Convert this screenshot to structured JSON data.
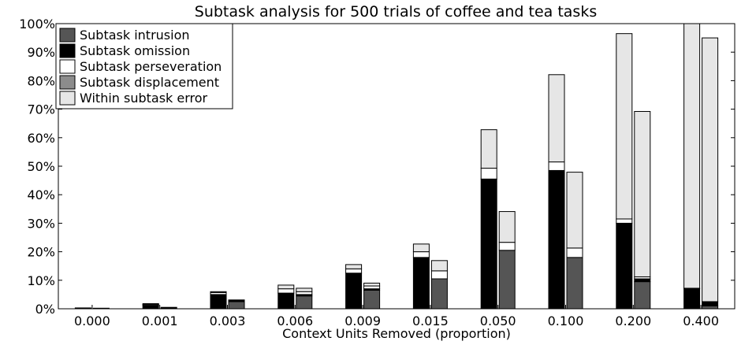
{
  "chart_data": {
    "type": "bar",
    "stacked": true,
    "title": "Subtask analysis for 500 trials of coffee and tea tasks",
    "xlabel": "Context Units Removed (proportion)",
    "ylabel": "",
    "ylim": [
      0,
      100
    ],
    "ytick_labels": [
      "0%",
      "10%",
      "20%",
      "30%",
      "40%",
      "50%",
      "60%",
      "70%",
      "80%",
      "90%",
      "100%"
    ],
    "categories": [
      "0.000",
      "0.001",
      "0.003",
      "0.006",
      "0.009",
      "0.015",
      "0.050",
      "0.100",
      "0.200",
      "0.400"
    ],
    "groups_per_category": 2,
    "legend_position": "top-left",
    "grid": false,
    "series": [
      {
        "name": "Subtask intrusion",
        "color": "#555555",
        "values": [
          [
            0,
            0
          ],
          [
            0,
            0
          ],
          [
            0,
            2.5
          ],
          [
            0,
            4.5
          ],
          [
            0,
            6.5
          ],
          [
            0,
            10.5
          ],
          [
            0,
            20.5
          ],
          [
            0,
            18
          ],
          [
            0,
            9.5
          ],
          [
            0,
            1
          ]
        ]
      },
      {
        "name": "Subtask omission",
        "color": "#000000",
        "values": [
          [
            0.3,
            0.2
          ],
          [
            1.2,
            0.5
          ],
          [
            5,
            0.5
          ],
          [
            5.5,
            0.5
          ],
          [
            12.5,
            0.5
          ],
          [
            18,
            0
          ],
          [
            45.5,
            0
          ],
          [
            48.5,
            0
          ],
          [
            30,
            1
          ],
          [
            7,
            1.5
          ]
        ]
      },
      {
        "name": "Subtask perseveration",
        "color": "#ffffff",
        "values": [
          [
            0,
            0
          ],
          [
            0.3,
            0
          ],
          [
            0.7,
            0.1
          ],
          [
            1.5,
            1
          ],
          [
            1.5,
            1
          ],
          [
            2,
            2.8
          ],
          [
            3.8,
            2.8
          ],
          [
            3,
            3.3
          ],
          [
            1.5,
            0.7
          ],
          [
            0.2,
            0
          ]
        ]
      },
      {
        "name": "Subtask displacement",
        "color": "#8c8c8c",
        "values": [
          [
            0,
            0
          ],
          [
            0,
            0
          ],
          [
            0,
            0
          ],
          [
            0,
            0
          ],
          [
            0,
            0
          ],
          [
            0,
            0
          ],
          [
            0,
            0
          ],
          [
            0,
            0
          ],
          [
            0,
            0
          ],
          [
            0,
            0
          ]
        ]
      },
      {
        "name": "Within subtask error",
        "color": "#e6e6e6",
        "values": [
          [
            0,
            0
          ],
          [
            0.3,
            0
          ],
          [
            0.3,
            0
          ],
          [
            1.3,
            1.2
          ],
          [
            1.5,
            1
          ],
          [
            2.7,
            3.6
          ],
          [
            13.5,
            10.8
          ],
          [
            30.6,
            26.6
          ],
          [
            65,
            58
          ],
          [
            92.8,
            92.5
          ]
        ]
      }
    ]
  }
}
